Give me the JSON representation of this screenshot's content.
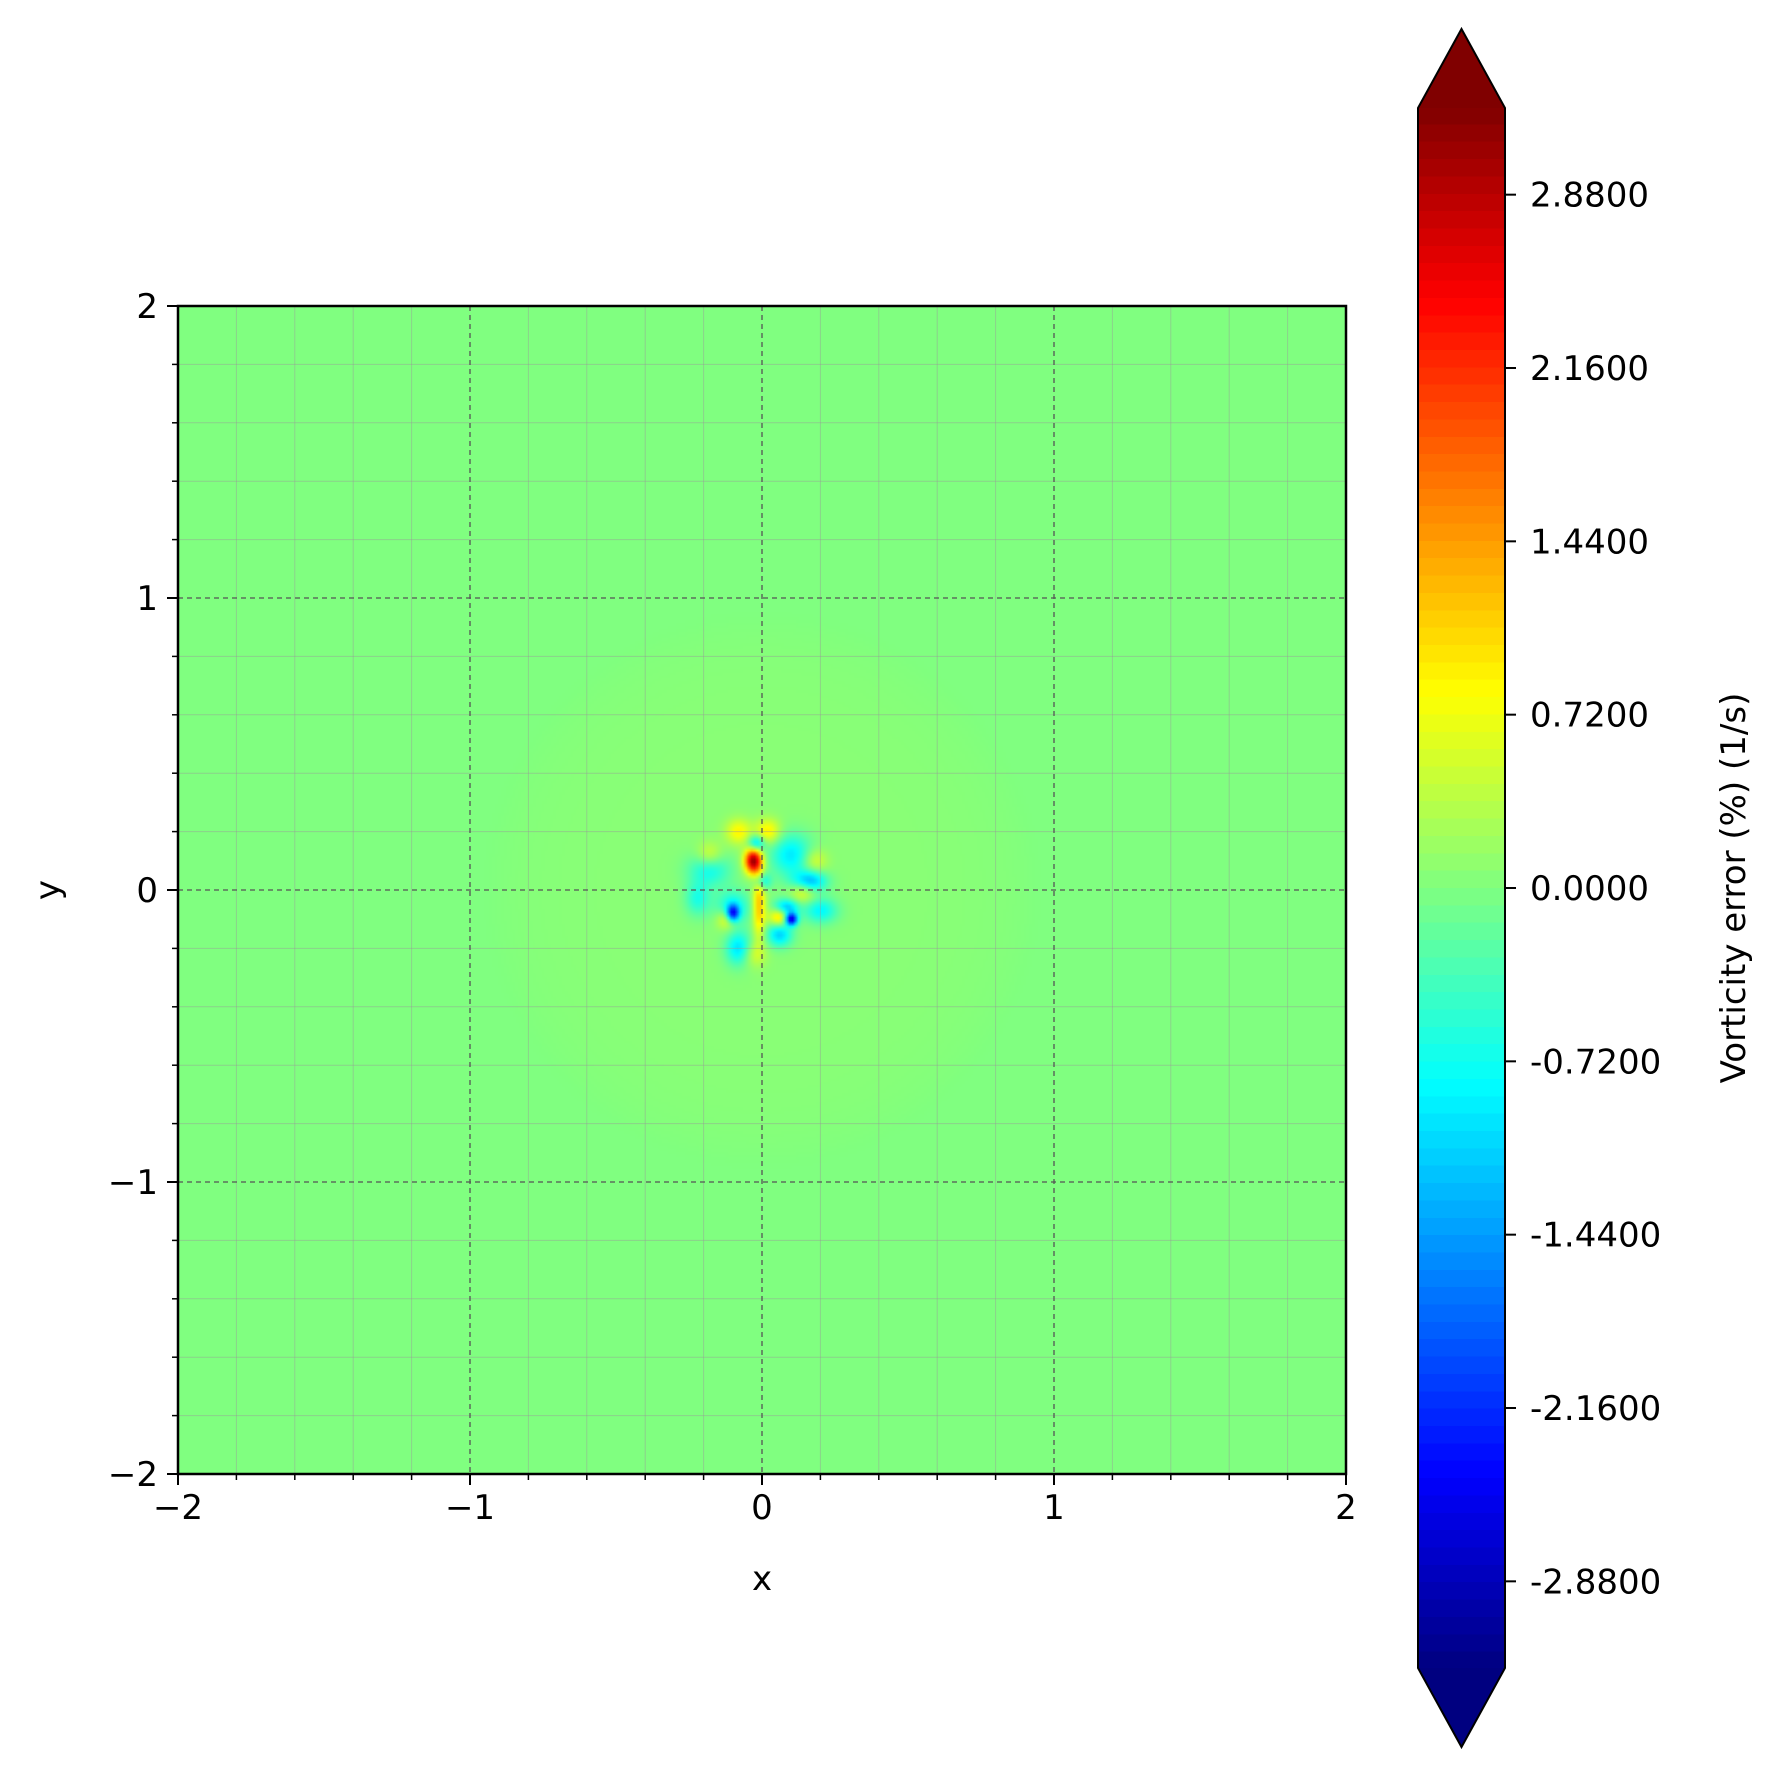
{
  "chart_data": {
    "type": "heatmap",
    "title": "",
    "xlabel": "x",
    "ylabel": "y",
    "xlim": [
      -2,
      2
    ],
    "ylim": [
      -2,
      2
    ],
    "x_ticks": [
      -2,
      -1,
      0,
      1,
      2
    ],
    "y_ticks": [
      -2,
      -1,
      0,
      1,
      2
    ],
    "x_tick_labels": [
      "−2",
      "−1",
      "0",
      "1",
      "2"
    ],
    "y_tick_labels": [
      "−2",
      "−1",
      "0",
      "1",
      "2"
    ],
    "minor_tick_step": 0.2,
    "grid": {
      "major": "dashed",
      "minor": "thin"
    },
    "colormap": "jet",
    "colorbar": {
      "label": "Vorticity error (%) (1/s)",
      "range": [
        -3.24,
        3.24
      ],
      "extend": "both",
      "ticks": [
        2.88,
        2.16,
        1.44,
        0.72,
        0.0,
        -0.72,
        -1.44,
        -2.16,
        -2.88
      ],
      "tick_labels": [
        "2.8800",
        "2.1600",
        "1.4400",
        "0.7200",
        "0.0000",
        "-0.7200",
        "-1.4400",
        "-2.1600",
        "-2.8800"
      ]
    },
    "background_value": 0.0,
    "halo": {
      "center": [
        0,
        0
      ],
      "radius": 0.95,
      "value": 0.06
    },
    "features": [
      {
        "x": -0.03,
        "y": 0.1,
        "value": 3.0,
        "sx": 0.02,
        "sy": 0.03
      },
      {
        "x": -0.01,
        "y": -0.05,
        "value": 1.2,
        "sx": 0.015,
        "sy": 0.08
      },
      {
        "x": 0.02,
        "y": 0.2,
        "value": 0.9,
        "sx": 0.03,
        "sy": 0.03
      },
      {
        "x": -0.08,
        "y": 0.2,
        "value": 0.8,
        "sx": 0.03,
        "sy": 0.03
      },
      {
        "x": 0.14,
        "y": 0.0,
        "value": 0.8,
        "sx": 0.03,
        "sy": 0.03
      },
      {
        "x": -0.12,
        "y": -0.1,
        "value": 0.9,
        "sx": 0.025,
        "sy": 0.025
      },
      {
        "x": 0.06,
        "y": -0.09,
        "value": 1.3,
        "sx": 0.025,
        "sy": 0.025
      },
      {
        "x": 0.18,
        "y": 0.1,
        "value": 0.6,
        "sx": 0.03,
        "sy": 0.03
      },
      {
        "x": -0.18,
        "y": 0.12,
        "value": 0.6,
        "sx": 0.03,
        "sy": 0.03
      },
      {
        "x": -0.03,
        "y": -0.22,
        "value": 0.5,
        "sx": 0.03,
        "sy": 0.03
      },
      {
        "x": 0.1,
        "y": 0.12,
        "value": -1.0,
        "sx": 0.05,
        "sy": 0.05
      },
      {
        "x": 0.16,
        "y": 0.03,
        "value": -1.5,
        "sx": 0.04,
        "sy": 0.025
      },
      {
        "x": -0.18,
        "y": 0.07,
        "value": -0.8,
        "sx": 0.05,
        "sy": 0.04
      },
      {
        "x": -0.1,
        "y": -0.06,
        "value": -0.9,
        "sx": 0.04,
        "sy": 0.04
      },
      {
        "x": -0.08,
        "y": -0.2,
        "value": -1.1,
        "sx": 0.03,
        "sy": 0.04
      },
      {
        "x": -0.1,
        "y": -0.08,
        "value": -2.2,
        "sx": 0.015,
        "sy": 0.02
      },
      {
        "x": 0.1,
        "y": -0.1,
        "value": -2.8,
        "sx": 0.015,
        "sy": 0.015
      },
      {
        "x": 0.08,
        "y": -0.06,
        "value": -1.5,
        "sx": 0.03,
        "sy": 0.02
      },
      {
        "x": 0.06,
        "y": -0.15,
        "value": -1.2,
        "sx": 0.03,
        "sy": 0.03
      },
      {
        "x": -0.02,
        "y": 0.16,
        "value": -1.3,
        "sx": 0.02,
        "sy": 0.02
      },
      {
        "x": 0.2,
        "y": -0.07,
        "value": -0.9,
        "sx": 0.04,
        "sy": 0.03
      },
      {
        "x": -0.22,
        "y": -0.03,
        "value": -0.7,
        "sx": 0.03,
        "sy": 0.04
      },
      {
        "x": 0.0,
        "y": 0.03,
        "value": -1.0,
        "sx": 0.02,
        "sy": 0.02
      }
    ]
  }
}
